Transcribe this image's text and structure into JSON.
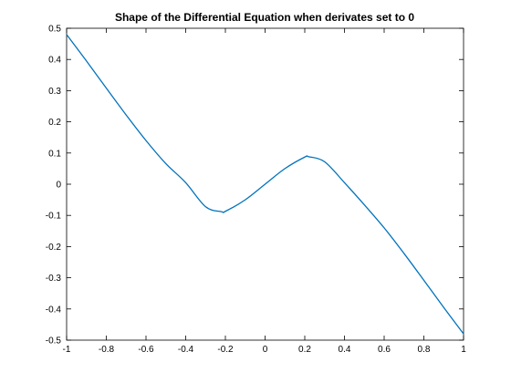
{
  "chart_data": {
    "type": "line",
    "title": "Shape of the Differential Equation when derivates set to 0",
    "xlabel": "",
    "ylabel": "",
    "xlim": [
      -1,
      1
    ],
    "ylim": [
      -0.5,
      0.5
    ],
    "grid": false,
    "x_ticks": [
      -1,
      -0.8,
      -0.6,
      -0.4,
      -0.2,
      0,
      0.2,
      0.4,
      0.6,
      0.8,
      1
    ],
    "x_tick_labels": [
      "-1",
      "-0.8",
      "-0.6",
      "-0.4",
      "-0.2",
      "0",
      "0.2",
      "0.4",
      "0.6",
      "0.8",
      "1"
    ],
    "y_ticks": [
      -0.5,
      -0.4,
      -0.3,
      -0.2,
      -0.1,
      0,
      0.1,
      0.2,
      0.3,
      0.4,
      0.5
    ],
    "y_tick_labels": [
      "-0.5",
      "-0.4",
      "-0.3",
      "-0.2",
      "-0.1",
      "0",
      "0.1",
      "0.2",
      "0.3",
      "0.4",
      "0.5"
    ],
    "series": [
      {
        "color": "#0072bd",
        "x": [
          -1,
          -0.9,
          -0.8,
          -0.7,
          -0.6,
          -0.5,
          -0.4,
          -0.3,
          -0.22,
          -0.2,
          -0.1,
          0,
          0.1,
          0.2,
          0.22,
          0.3,
          0.4,
          0.5,
          0.6,
          0.7,
          0.8,
          0.9,
          1
        ],
        "y": [
          0.48,
          0.395,
          0.308,
          0.222,
          0.14,
          0.066,
          0.005,
          -0.072,
          -0.088,
          -0.087,
          -0.05,
          0,
          0.05,
          0.087,
          0.088,
          0.072,
          0.005,
          -0.066,
          -0.14,
          -0.222,
          -0.308,
          -0.395,
          -0.48
        ]
      }
    ]
  }
}
